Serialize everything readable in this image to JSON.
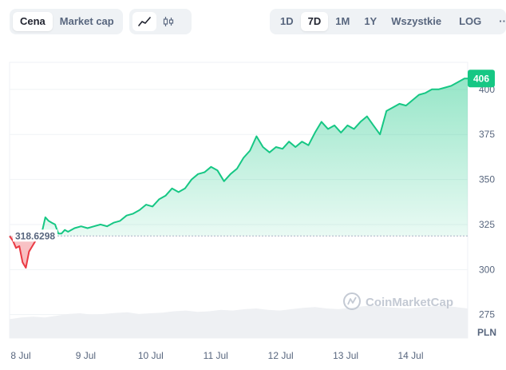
{
  "toolbar": {
    "price_tab": "Cena",
    "market_cap_tab": "Market cap",
    "line_icon": "line-chart-icon",
    "candle_icon": "candlestick-icon",
    "range_1d": "1D",
    "range_7d": "7D",
    "range_1m": "1M",
    "range_1y": "1Y",
    "range_all": "Wszystkie",
    "log": "LOG",
    "more": "···"
  },
  "watermark": "CoinMarketCap",
  "colors": {
    "up": "#16c784",
    "down": "#ea3943",
    "grid": "#eff2f5",
    "volume": "#eef0f3"
  },
  "chart_data": {
    "type": "line",
    "currency": "PLN",
    "reference_price": "318.6298",
    "current_price": "406",
    "ylim": [
      262,
      415
    ],
    "yticks": [
      "275",
      "300",
      "325",
      "350",
      "375",
      "400"
    ],
    "xticks": [
      "8 Jul",
      "9 Jul",
      "10 Jul",
      "11 Jul",
      "12 Jul",
      "13 Jul",
      "14 Jul"
    ],
    "xlim": [
      0,
      7.05
    ],
    "series": [
      {
        "values": [
          [
            0.0,
            318.6
          ],
          [
            0.05,
            316
          ],
          [
            0.1,
            312
          ],
          [
            0.15,
            313
          ],
          [
            0.2,
            304
          ],
          [
            0.25,
            301
          ],
          [
            0.3,
            310
          ],
          [
            0.35,
            313
          ],
          [
            0.4,
            316
          ],
          [
            0.45,
            318.6
          ],
          [
            0.5,
            321
          ],
          [
            0.55,
            329
          ],
          [
            0.6,
            327
          ],
          [
            0.65,
            326
          ],
          [
            0.7,
            325
          ],
          [
            0.75,
            320
          ],
          [
            0.8,
            320
          ],
          [
            0.85,
            322
          ],
          [
            0.9,
            321
          ],
          [
            1.0,
            323
          ],
          [
            1.1,
            324
          ],
          [
            1.2,
            323
          ],
          [
            1.3,
            324
          ],
          [
            1.4,
            325
          ],
          [
            1.5,
            324
          ],
          [
            1.6,
            326
          ],
          [
            1.7,
            327
          ],
          [
            1.8,
            330
          ],
          [
            1.9,
            331
          ],
          [
            2.0,
            333
          ],
          [
            2.1,
            336
          ],
          [
            2.2,
            335
          ],
          [
            2.3,
            339
          ],
          [
            2.4,
            341
          ],
          [
            2.5,
            345
          ],
          [
            2.6,
            343
          ],
          [
            2.7,
            345
          ],
          [
            2.8,
            350
          ],
          [
            2.9,
            353
          ],
          [
            3.0,
            354
          ],
          [
            3.1,
            357
          ],
          [
            3.2,
            355
          ],
          [
            3.3,
            349
          ],
          [
            3.4,
            353
          ],
          [
            3.5,
            356
          ],
          [
            3.6,
            362
          ],
          [
            3.7,
            366
          ],
          [
            3.8,
            374
          ],
          [
            3.9,
            368
          ],
          [
            4.0,
            365
          ],
          [
            4.1,
            368
          ],
          [
            4.2,
            367
          ],
          [
            4.3,
            371
          ],
          [
            4.4,
            368
          ],
          [
            4.5,
            371
          ],
          [
            4.6,
            369
          ],
          [
            4.7,
            376
          ],
          [
            4.8,
            382
          ],
          [
            4.9,
            378
          ],
          [
            5.0,
            380
          ],
          [
            5.1,
            376
          ],
          [
            5.2,
            380
          ],
          [
            5.3,
            378
          ],
          [
            5.4,
            382
          ],
          [
            5.5,
            385
          ],
          [
            5.6,
            380
          ],
          [
            5.7,
            375
          ],
          [
            5.8,
            388
          ],
          [
            5.9,
            390
          ],
          [
            6.0,
            392
          ],
          [
            6.1,
            391
          ],
          [
            6.2,
            394
          ],
          [
            6.3,
            397
          ],
          [
            6.4,
            398
          ],
          [
            6.5,
            400
          ],
          [
            6.6,
            400
          ],
          [
            6.7,
            401
          ],
          [
            6.8,
            402
          ],
          [
            6.9,
            404
          ],
          [
            7.0,
            406
          ],
          [
            7.05,
            406
          ]
        ]
      }
    ],
    "volume_fraction": [
      0.55,
      0.6,
      0.62,
      0.6,
      0.65,
      0.7,
      0.72,
      0.68,
      0.7,
      0.73,
      0.75,
      0.7,
      0.72,
      0.74,
      0.78,
      0.8,
      0.76,
      0.78,
      0.82,
      0.8,
      0.84,
      0.86,
      0.82,
      0.8,
      0.84,
      0.88,
      0.9,
      0.86,
      0.84,
      0.88,
      0.92,
      0.95,
      0.9,
      0.88,
      0.86,
      0.9,
      0.92,
      0.94,
      0.9,
      0.86
    ]
  }
}
